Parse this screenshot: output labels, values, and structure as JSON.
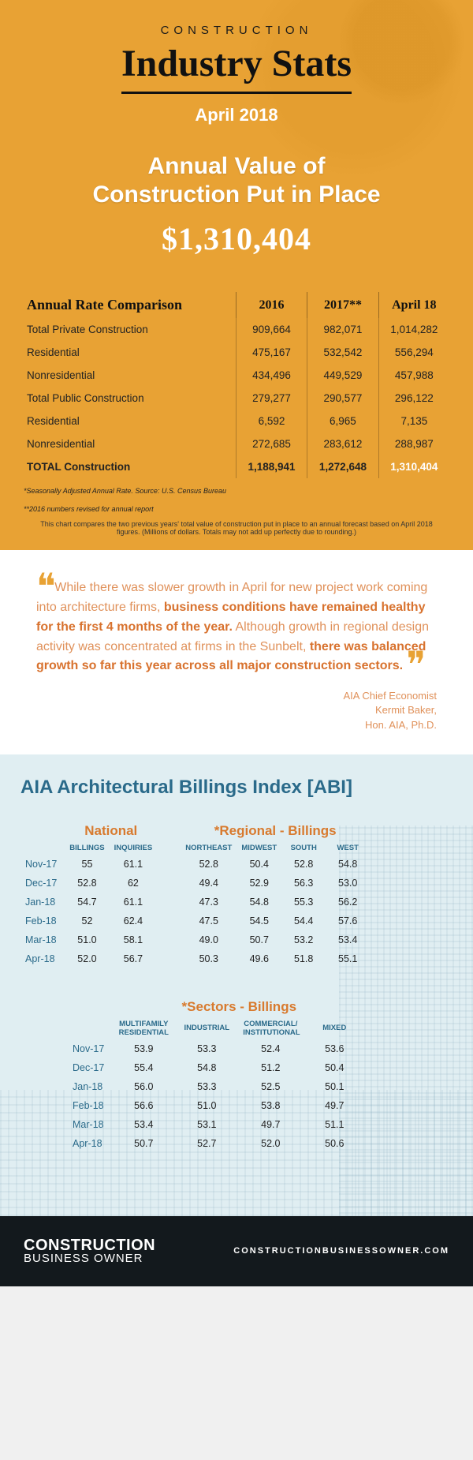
{
  "header": {
    "overline": "CONSTRUCTION",
    "title": "Industry Stats",
    "date": "April 2018",
    "subline1": "Annual Value of",
    "subline2": "Construction Put in Place",
    "value": "$1,310,404"
  },
  "rate_table": {
    "title": "Annual Rate Comparison",
    "cols": [
      "2016",
      "2017**",
      "April 18"
    ],
    "rows": [
      {
        "label": "Total Private Construction",
        "v": [
          "909,664",
          "982,071",
          "1,014,282"
        ]
      },
      {
        "label": "Residential",
        "v": [
          "475,167",
          "532,542",
          "556,294"
        ]
      },
      {
        "label": "Nonresidential",
        "v": [
          "434,496",
          "449,529",
          "457,988"
        ]
      },
      {
        "label": "Total Public Construction",
        "v": [
          "279,277",
          "290,577",
          "296,122"
        ]
      },
      {
        "label": "Residential",
        "v": [
          "6,592",
          "6,965",
          "7,135"
        ]
      },
      {
        "label": "Nonresidential",
        "v": [
          "272,685",
          "283,612",
          "288,987"
        ]
      },
      {
        "label": "TOTAL Construction",
        "v": [
          "1,188,941",
          "1,272,648",
          "1,310,404"
        ]
      }
    ],
    "footnote1": "*Seasonally Adjusted Annual Rate. Source: U.S. Census Bureau",
    "footnote2": "**2016 numbers revised for annual report",
    "footnote3": "This chart compares the two previous years' total value of construction put in place to an annual forecast based on April 2018 figures. (Millions of dollars. Totals may not add up perfectly due to rounding.)"
  },
  "quote": {
    "p1_light": "While there was slower growth in April for new project work coming into architecture firms, ",
    "p1_bold": "business conditions have remained healthy for the first 4 months of the year.",
    "p2_light": " Although growth in regional design activity was concentrated at firms in the Sunbelt, ",
    "p2_bold": "there was balanced growth so far this year across all major construction sectors.",
    "attr1": "AIA Chief Economist",
    "attr2": "Kermit Baker,",
    "attr3": "Hon. AIA, Ph.D."
  },
  "abi": {
    "title": "AIA Architectural Billings Index [ABI]",
    "months": [
      "Nov-17",
      "Dec-17",
      "Jan-18",
      "Feb-18",
      "Mar-18",
      "Apr-18"
    ],
    "national": {
      "title": "National",
      "cols": [
        "BILLINGS",
        "INQUIRIES"
      ],
      "data": [
        [
          "55",
          "61.1"
        ],
        [
          "52.8",
          "62"
        ],
        [
          "54.7",
          "61.1"
        ],
        [
          "52",
          "62.4"
        ],
        [
          "51.0",
          "58.1"
        ],
        [
          "52.0",
          "56.7"
        ]
      ]
    },
    "regional": {
      "title": "*Regional - Billings",
      "cols": [
        "NORTHEAST",
        "MIDWEST",
        "SOUTH",
        "WEST"
      ],
      "data": [
        [
          "52.8",
          "50.4",
          "52.8",
          "54.8"
        ],
        [
          "49.4",
          "52.9",
          "56.3",
          "53.0"
        ],
        [
          "47.3",
          "54.8",
          "55.3",
          "56.2"
        ],
        [
          "47.5",
          "54.5",
          "54.4",
          "57.6"
        ],
        [
          "49.0",
          "50.7",
          "53.2",
          "53.4"
        ],
        [
          "50.3",
          "49.6",
          "51.8",
          "55.1"
        ]
      ]
    },
    "sectors": {
      "title": "*Sectors - Billings",
      "cols": [
        "MULTIFAMILY RESIDENTIAL",
        "INDUSTRIAL",
        "COMMERCIAL/ INSTITUTIONAL",
        "MIXED"
      ],
      "data": [
        [
          "53.9",
          "53.3",
          "52.4",
          "53.6"
        ],
        [
          "55.4",
          "54.8",
          "51.2",
          "50.4"
        ],
        [
          "56.0",
          "53.3",
          "52.5",
          "50.1"
        ],
        [
          "56.6",
          "51.0",
          "53.8",
          "49.7"
        ],
        [
          "53.4",
          "53.1",
          "49.7",
          "51.1"
        ],
        [
          "50.7",
          "52.7",
          "52.0",
          "50.6"
        ]
      ]
    }
  },
  "footer": {
    "logo1": "CONSTRUCTION",
    "logo2": "BUSINESS OWNER",
    "url": "CONSTRUCTIONBUSINESSOWNER.COM"
  },
  "colors": {
    "orange_bg": "#e8a234",
    "quote_text": "#d8722e",
    "abi_bg": "#e0eef2",
    "abi_blue": "#2a6a8a",
    "footer_bg": "#13191d"
  }
}
